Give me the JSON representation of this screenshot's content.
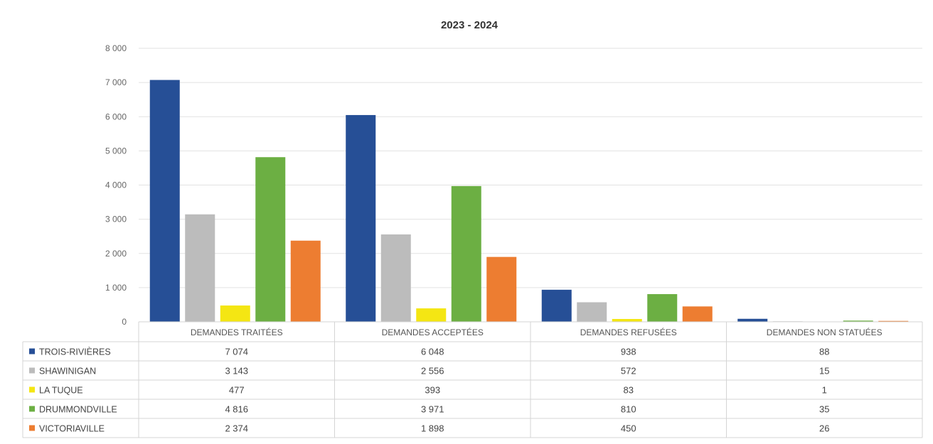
{
  "chart_data": {
    "type": "bar",
    "title": "2023 - 2024",
    "categories": [
      "DEMANDES TRAITÉES",
      "DEMANDES ACCEPTÉES",
      "DEMANDES REFUSÉES",
      "DEMANDES NON STATUÉES"
    ],
    "series": [
      {
        "name": "TROIS-RIVIÈRES",
        "color": "#264f96",
        "values": [
          7074,
          6048,
          938,
          88
        ],
        "labels": [
          "7 074",
          "6 048",
          "938",
          "88"
        ]
      },
      {
        "name": "SHAWINIGAN",
        "color": "#bcbcbc",
        "values": [
          3143,
          2556,
          572,
          15
        ],
        "labels": [
          "3 143",
          "2 556",
          "572",
          "15"
        ]
      },
      {
        "name": "LA TUQUE",
        "color": "#f4e613",
        "values": [
          477,
          393,
          83,
          1
        ],
        "labels": [
          "477",
          "393",
          "83",
          "1"
        ]
      },
      {
        "name": "DRUMMONDVILLE",
        "color": "#6caf43",
        "values": [
          4816,
          3971,
          810,
          35
        ],
        "labels": [
          "4 816",
          "3 971",
          "810",
          "35"
        ]
      },
      {
        "name": "VICTORIAVILLE",
        "color": "#ed7d31",
        "values": [
          2374,
          1898,
          450,
          26
        ],
        "labels": [
          "2 374",
          "1 898",
          "450",
          "26"
        ]
      }
    ],
    "ylim": [
      0,
      8000
    ],
    "yticks": [
      0,
      1000,
      2000,
      3000,
      4000,
      5000,
      6000,
      7000,
      8000
    ],
    "ytick_labels": [
      "0",
      "1 000",
      "2 000",
      "3 000",
      "4 000",
      "5 000",
      "6 000",
      "7 000",
      "8 000"
    ],
    "grid": true,
    "legend": "data-table"
  }
}
